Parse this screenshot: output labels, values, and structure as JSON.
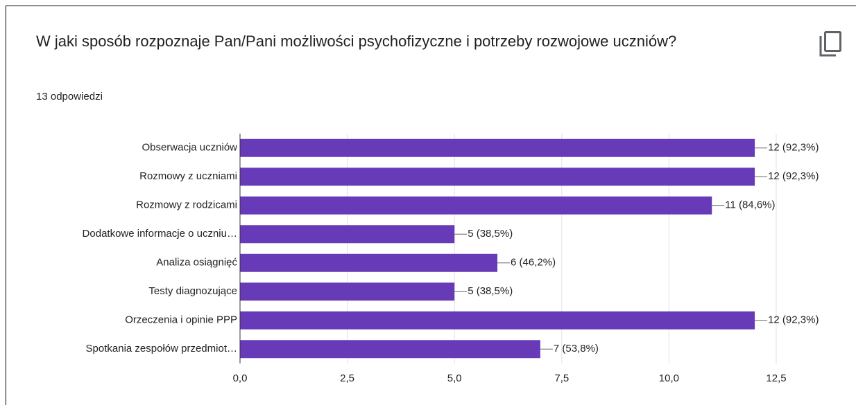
{
  "chart_data": {
    "type": "bar",
    "orientation": "horizontal",
    "title": "W jaki sposób rozpoznaje Pan/Pani możliwości psychofizyczne i potrzeby rozwojowe uczniów?",
    "subtitle": "13 odpowiedzi",
    "categories": [
      "Obserwacja uczniów",
      "Rozmowy z uczniami",
      "Rozmowy z rodzicami",
      "Dodatkowe informacje o uczniu…",
      "Analiza osiągnięć",
      "Testy diagnozujące",
      "Orzeczenia i opinie PPP",
      "Spotkania zespołów przedmiot…"
    ],
    "values": [
      12,
      12,
      11,
      5,
      6,
      5,
      12,
      7
    ],
    "value_labels": [
      "12 (92,3%)",
      "12 (92,3%)",
      "11 (84,6%)",
      "5 (38,5%)",
      "6 (46,2%)",
      "5 (38,5%)",
      "12 (92,3%)",
      "7 (53,8%)"
    ],
    "color": "#673ab7",
    "xlim": [
      0,
      12.5
    ],
    "xticks": [
      {
        "value": 0,
        "label": "0,0"
      },
      {
        "value": 2.5,
        "label": "2,5"
      },
      {
        "value": 5,
        "label": "5,0"
      },
      {
        "value": 7.5,
        "label": "7,5"
      },
      {
        "value": 10,
        "label": "10,0"
      },
      {
        "value": 12.5,
        "label": "12,5"
      }
    ],
    "grid": true
  }
}
